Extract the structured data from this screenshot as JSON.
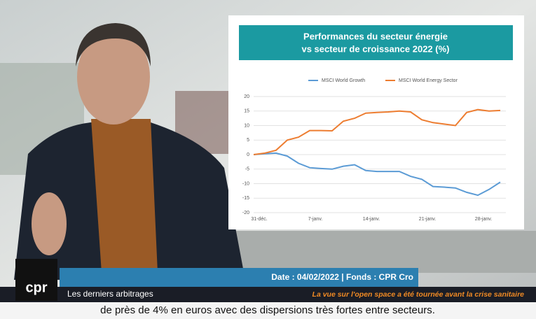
{
  "chart_data": {
    "type": "line",
    "title": [
      "Performances du secteur énergie",
      "vs secteur de croissance 2022 (%)"
    ],
    "categories": [
      "31-déc.",
      null,
      null,
      null,
      null,
      "7-janv.",
      null,
      null,
      null,
      null,
      "14-janv.",
      null,
      null,
      null,
      null,
      "21-janv.",
      null,
      null,
      null,
      null,
      "28-janv.",
      null,
      null
    ],
    "series": [
      {
        "name": "MSCI World Growth",
        "color": "#5b9bd5",
        "values": [
          0,
          0.3,
          0.5,
          -0.5,
          -3,
          -4.5,
          -4.8,
          -5,
          -4,
          -3.5,
          -5.5,
          -5.8,
          -5.8,
          -5.8,
          -7.5,
          -8.5,
          -11,
          -11.2,
          -11.5,
          -13,
          -14,
          -12,
          -9.5
        ]
      },
      {
        "name": "MSCI World Energy Sector",
        "color": "#ed7d31",
        "values": [
          0,
          0.5,
          1.5,
          5,
          6,
          8.3,
          8.3,
          8.2,
          11.5,
          12.5,
          14.3,
          14.5,
          14.7,
          15,
          14.7,
          12,
          11,
          10.5,
          10,
          14.5,
          15.5,
          15,
          15.2
        ]
      }
    ],
    "ylim": [
      -20,
      20
    ],
    "yticks": [
      -20,
      -15,
      -10,
      -5,
      0,
      5,
      10,
      15,
      20
    ],
    "grid": true,
    "legend": "top"
  },
  "overlay": {
    "logo": "cpr",
    "info": "Date : 04/02/2022 | Fonds : CPR Cro",
    "program": "Les derniers arbitrages",
    "note": "La vue sur l'open space a été tournée avant la crise sanitaire",
    "subtitle": "de près de 4% en euros avec des dispersions très fortes entre secteurs."
  }
}
